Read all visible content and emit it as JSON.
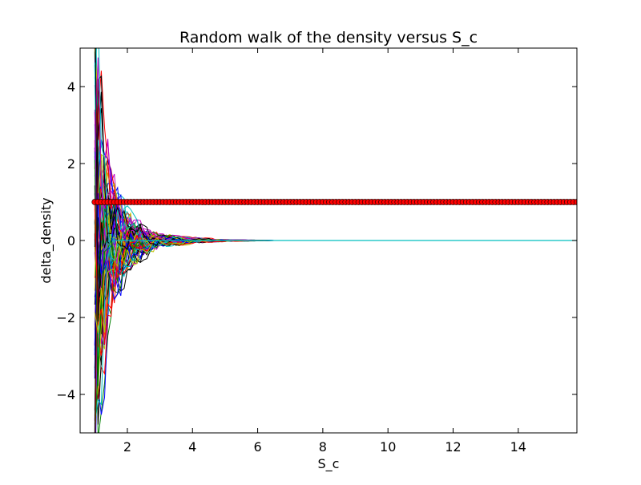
{
  "chart_data": {
    "type": "line",
    "title": "Random walk of the density versus S_c",
    "xlabel": "S_c",
    "ylabel": "delta_density",
    "xlim": [
      0.55,
      15.8
    ],
    "ylim": [
      -5,
      5
    ],
    "xticks": [
      2,
      4,
      6,
      8,
      10,
      12,
      14
    ],
    "yticks": [
      4,
      2,
      0,
      -2,
      -4
    ],
    "ytick_labels": [
      "4",
      "2",
      "0",
      "−2",
      "−4"
    ],
    "grid": false,
    "legend": "none",
    "walk_colors": [
      "#0000ff",
      "#008000",
      "#ff0000",
      "#00bfbf",
      "#bf00bf",
      "#bfbf00",
      "#000000"
    ],
    "markers": {
      "y": 1.0,
      "x_start": 1.0,
      "x_end": 15.8,
      "x_step": 0.1,
      "color": "#ff0000",
      "edge_color": "#000000"
    },
    "envelope": {
      "description_points_x": [
        1.0,
        1.25,
        1.5,
        2.0,
        2.5,
        3.0,
        4.0,
        5.0,
        6.5
      ],
      "amplitude": [
        5.0,
        4.2,
        2.2,
        1.0,
        0.45,
        0.22,
        0.08,
        0.03,
        0.0
      ]
    },
    "final_line": {
      "y": 0,
      "x_start": 6.5,
      "x_end": 15.8,
      "color": "#00bfbf"
    }
  }
}
